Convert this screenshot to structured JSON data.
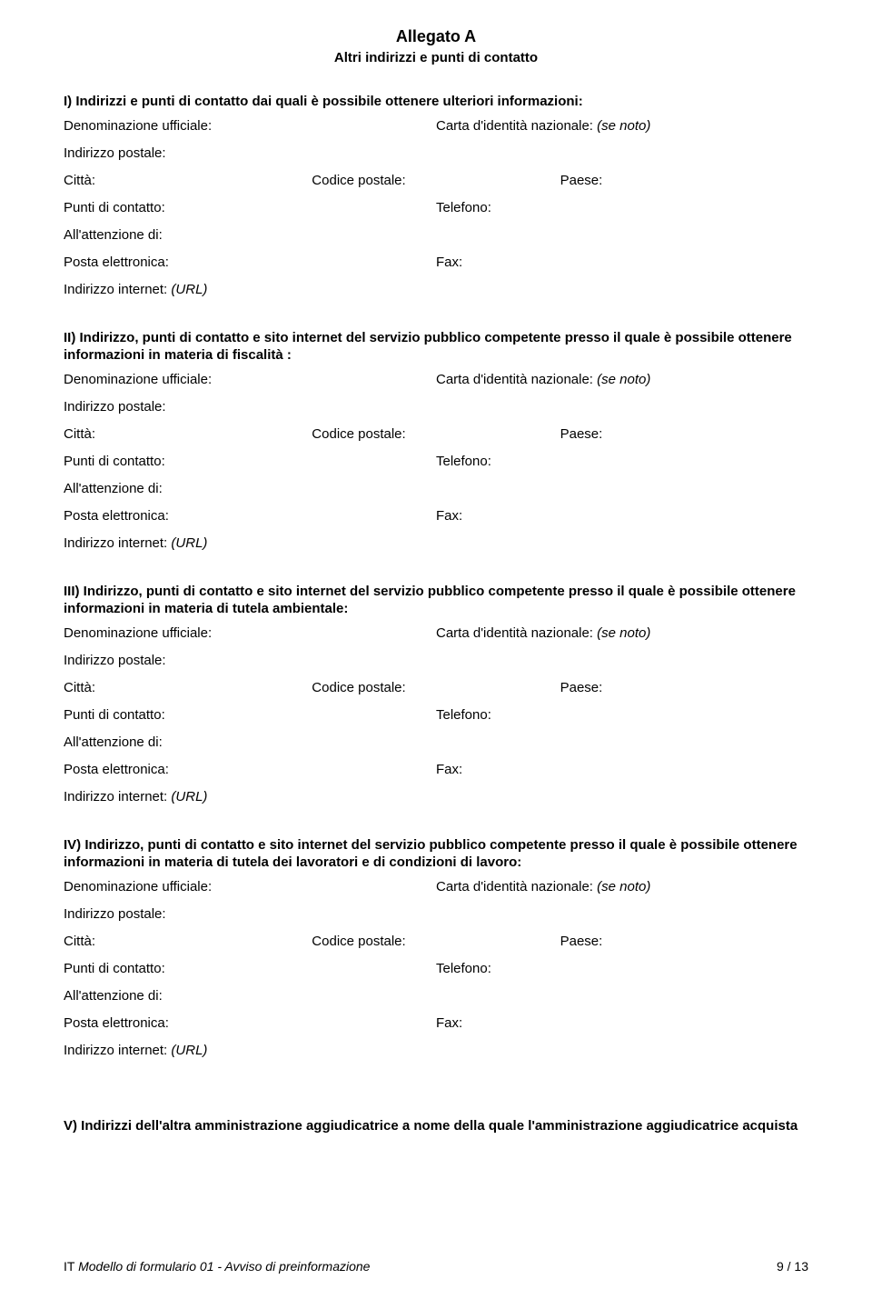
{
  "header": {
    "annex": "Allegato A",
    "subtitle": "Altri indirizzi e punti di contatto"
  },
  "sections": {
    "s1": {
      "heading": "I) Indirizzi e punti di contatto dai quali è possibile ottenere ulteriori informazioni:"
    },
    "s2": {
      "heading": "II) Indirizzo, punti di contatto e sito internet del servizio pubblico competente presso il quale è possibile ottenere informazioni in materia di fiscalità :"
    },
    "s3": {
      "heading": "III) Indirizzo, punti di contatto e sito internet del servizio pubblico competente presso il quale è possibile ottenere informazioni in materia di tutela ambientale:"
    },
    "s4": {
      "heading": "IV) Indirizzo, punti di contatto e sito internet del servizio pubblico competente presso il quale è possibile ottenere informazioni in materia di tutela dei lavoratori e di condizioni di lavoro:"
    },
    "s5": {
      "heading": "V) Indirizzi dell'altra amministrazione aggiudicatrice a nome della quale l'amministrazione aggiudicatrice acquista"
    }
  },
  "labels": {
    "official_name": "Denominazione ufficiale:",
    "national_id": "Carta d'identità nazionale:",
    "national_id_note": "(se noto)",
    "postal_address": "Indirizzo postale:",
    "city": "Città:",
    "postal_code": "Codice postale:",
    "country": "Paese:",
    "contact_points": "Punti di contatto:",
    "phone": "Telefono:",
    "attention_of": "All'attenzione di:",
    "email": "Posta elettronica:",
    "fax": "Fax:",
    "internet_address": "Indirizzo internet:",
    "url_note": "(URL)"
  },
  "footer": {
    "left_prefix": "IT  ",
    "left_text": "Modello di formulario 01 - Avviso di preinformazione",
    "right": "9 / 13"
  }
}
